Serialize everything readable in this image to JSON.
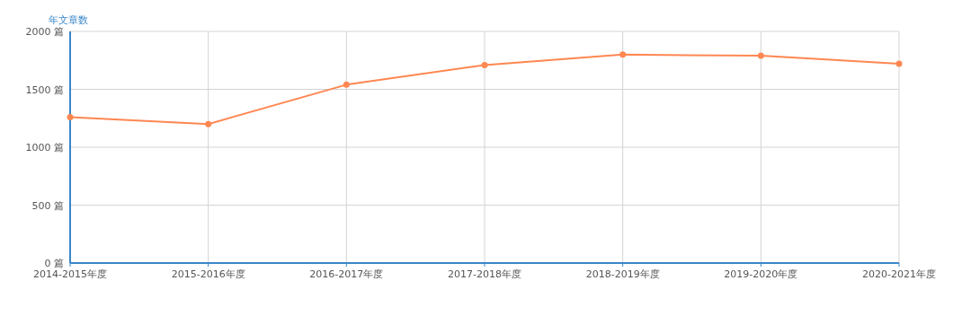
{
  "chart_data": {
    "type": "line",
    "ylabel": "年文章数",
    "categories": [
      "2014-2015年度",
      "2015-2016年度",
      "2016-2017年度",
      "2017-2018年度",
      "2018-2019年度",
      "2019-2020年度",
      "2020-2021年度"
    ],
    "series": [
      {
        "color": "#ff8752",
        "values": [
          1260,
          1200,
          1540,
          1710,
          1800,
          1790,
          1720
        ]
      }
    ],
    "ylim": [
      0,
      2000
    ],
    "yticks": [
      {
        "value": 0,
        "label": "0 篇"
      },
      {
        "value": 500,
        "label": "500 篇"
      },
      {
        "value": 1000,
        "label": "1000 篇"
      },
      {
        "value": 1500,
        "label": "1500 篇"
      },
      {
        "value": 2000,
        "label": "2000 篇"
      }
    ],
    "grid": true,
    "marker": "circle",
    "line_style": "solid"
  }
}
